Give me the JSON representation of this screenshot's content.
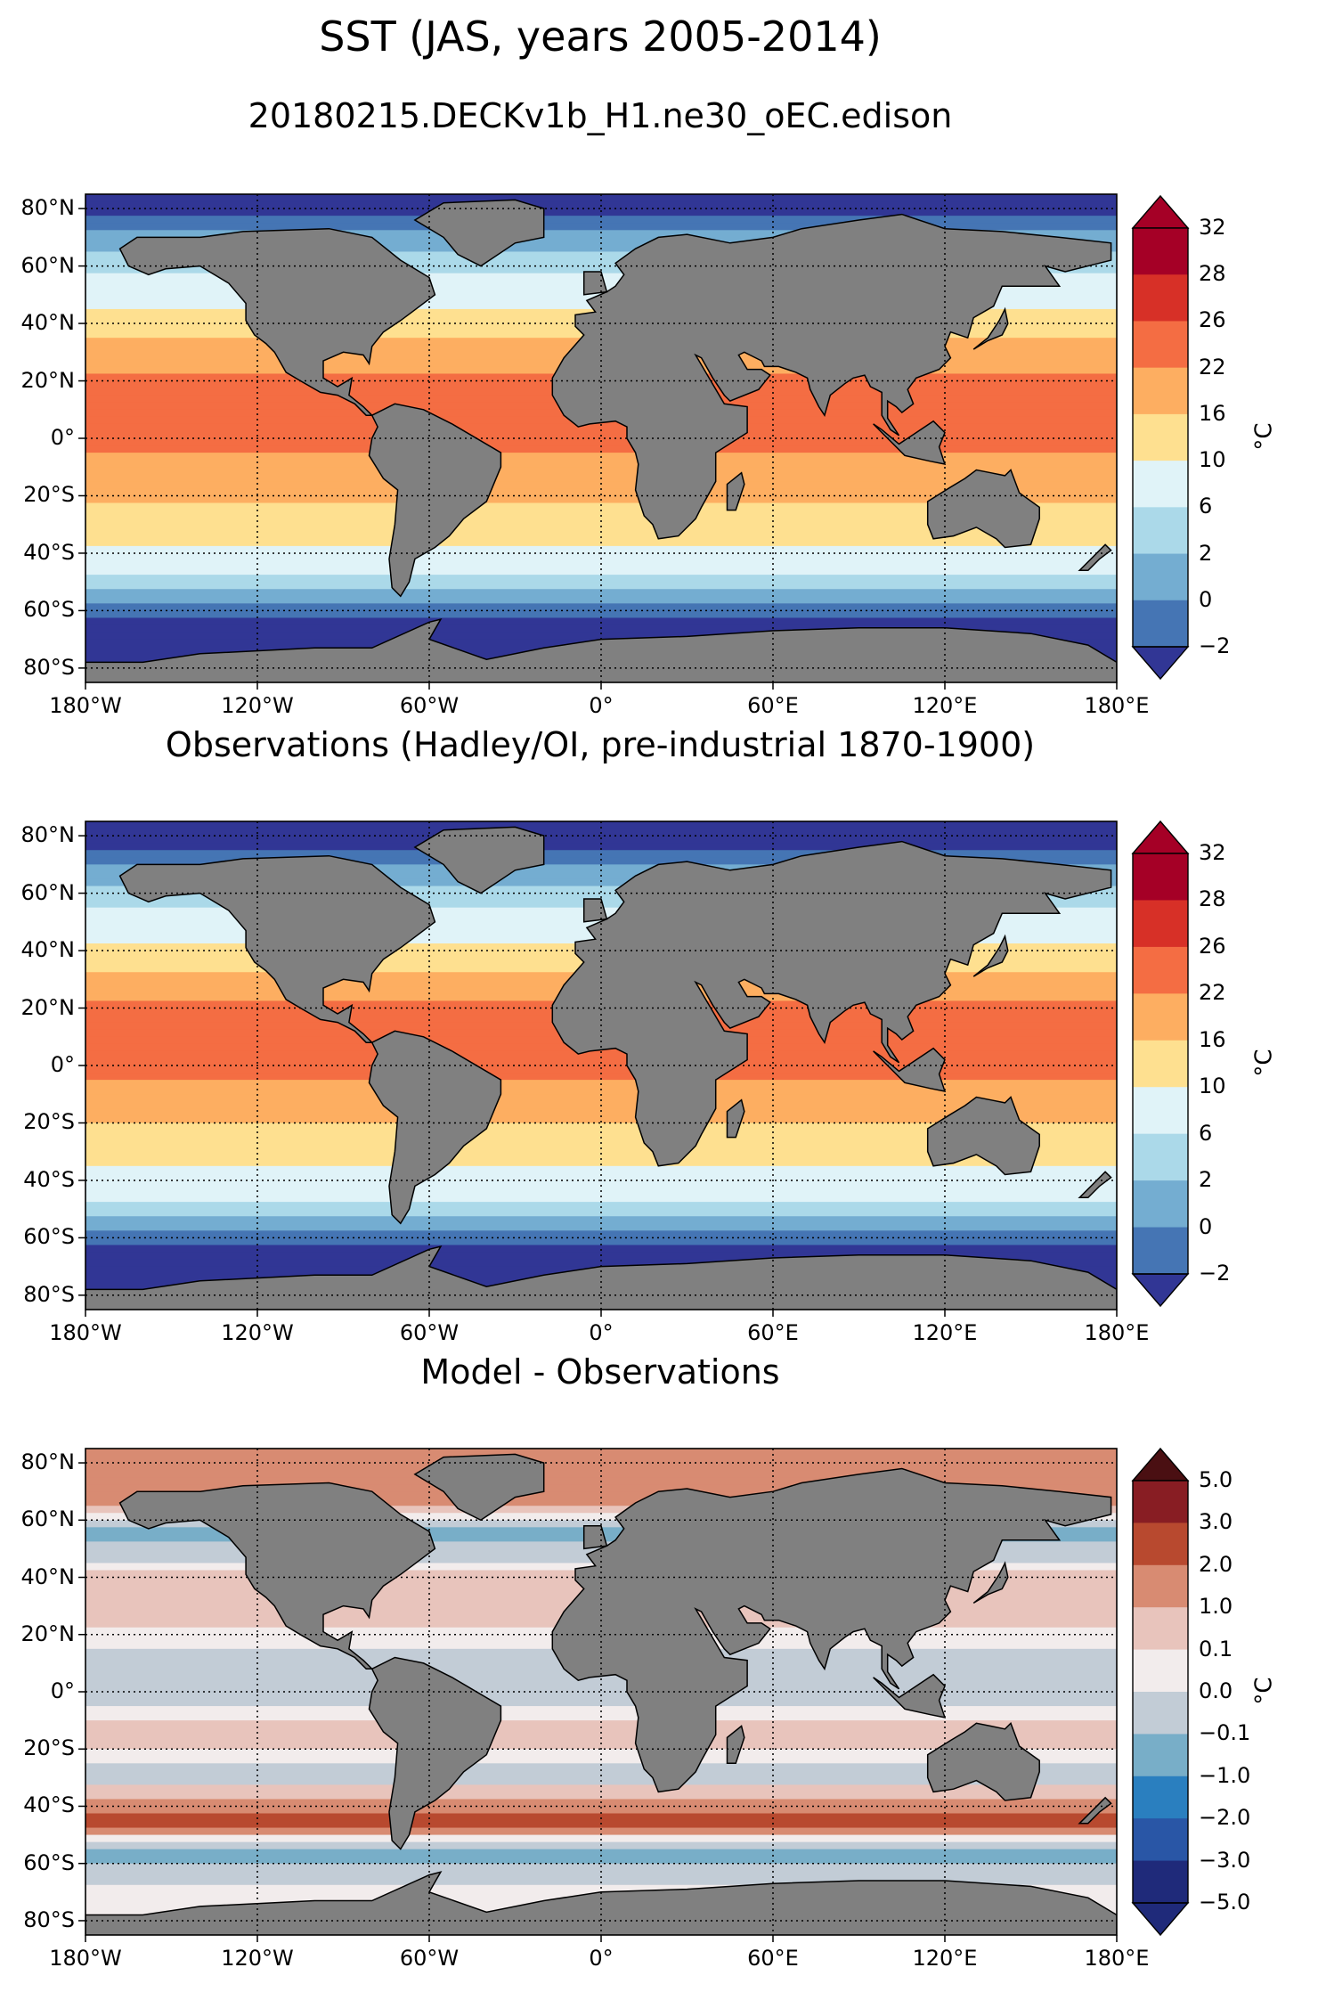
{
  "figure": {
    "title": "SST (JAS, years 2005-2014)"
  },
  "axes": {
    "xticks": [
      "180°W",
      "120°W",
      "60°W",
      "0°",
      "60°E",
      "120°E",
      "180°E"
    ],
    "yticks": [
      "80°N",
      "60°N",
      "40°N",
      "20°N",
      "0°",
      "20°S",
      "40°S",
      "60°S",
      "80°S"
    ]
  },
  "colors": {
    "land": "#808080",
    "ocean_ice": "#ffffff",
    "sst_levels": [
      "#313695",
      "#4575b4",
      "#74add1",
      "#abd9e9",
      "#e0f3f8",
      "#fee090",
      "#fdae61",
      "#f46d43",
      "#d73027",
      "#a50026"
    ],
    "diff_levels": [
      "#1f2a7a",
      "#2956a6",
      "#2a7fbf",
      "#78aec8",
      "#c2ccd6",
      "#f2ecec",
      "#e8c4bc",
      "#d88b72",
      "#b8492f",
      "#881d23",
      "#4a0f12"
    ]
  },
  "chart_data": [
    {
      "type": "heatmap",
      "title": "20180215.DECKv1b_H1.ne30_oEC.edison",
      "colorbar": {
        "unit": "°C",
        "levels": [
          "32",
          "28",
          "26",
          "22",
          "16",
          "10",
          "6",
          "2",
          "0",
          "−2"
        ],
        "extend": "both"
      },
      "xrange": [
        -180,
        180
      ],
      "yrange": [
        -85,
        85
      ],
      "zonal_mean_sst": [
        {
          "lat": 80,
          "value": -1.5
        },
        {
          "lat": 70,
          "value": 3
        },
        {
          "lat": 60,
          "value": 8
        },
        {
          "lat": 45,
          "value": 16
        },
        {
          "lat": 30,
          "value": 24
        },
        {
          "lat": 15,
          "value": 28
        },
        {
          "lat": 0,
          "value": 27
        },
        {
          "lat": -15,
          "value": 24
        },
        {
          "lat": -30,
          "value": 20
        },
        {
          "lat": -45,
          "value": 12
        },
        {
          "lat": -55,
          "value": 4
        },
        {
          "lat": -65,
          "value": -1.5
        }
      ]
    },
    {
      "type": "heatmap",
      "title": "Observations (Hadley/OI, pre-industrial 1870-1900)",
      "colorbar": {
        "unit": "°C",
        "levels": [
          "32",
          "28",
          "26",
          "22",
          "16",
          "10",
          "6",
          "2",
          "0",
          "−2"
        ],
        "extend": "both"
      },
      "xrange": [
        -180,
        180
      ],
      "yrange": [
        -85,
        85
      ],
      "zonal_mean_sst": [
        {
          "lat": 80,
          "value": -1.5
        },
        {
          "lat": 70,
          "value": 2
        },
        {
          "lat": 60,
          "value": 7
        },
        {
          "lat": 45,
          "value": 15
        },
        {
          "lat": 30,
          "value": 24
        },
        {
          "lat": 15,
          "value": 28
        },
        {
          "lat": 0,
          "value": 27
        },
        {
          "lat": -15,
          "value": 24
        },
        {
          "lat": -30,
          "value": 19
        },
        {
          "lat": -45,
          "value": 11
        },
        {
          "lat": -55,
          "value": 3
        },
        {
          "lat": -65,
          "value": -1.5
        }
      ]
    },
    {
      "type": "heatmap",
      "title": "Model - Observations",
      "colorbar": {
        "unit": "°C",
        "levels": [
          "5.0",
          "3.0",
          "2.0",
          "1.0",
          "0.1",
          "0.0",
          "−0.1",
          "−1.0",
          "−2.0",
          "−3.0",
          "−5.0"
        ],
        "extend": "both"
      },
      "xrange": [
        -180,
        180
      ],
      "yrange": [
        -85,
        85
      ],
      "zonal_mean_diff": [
        {
          "lat": 80,
          "value": 1.0
        },
        {
          "lat": 70,
          "value": 2.0
        },
        {
          "lat": 55,
          "value": -1.5
        },
        {
          "lat": 40,
          "value": 0.5
        },
        {
          "lat": 20,
          "value": 0.05
        },
        {
          "lat": 0,
          "value": -0.5
        },
        {
          "lat": -15,
          "value": 0.5
        },
        {
          "lat": -30,
          "value": -0.5
        },
        {
          "lat": -45,
          "value": 2.5
        },
        {
          "lat": -55,
          "value": -1.5
        },
        {
          "lat": -70,
          "value": 0.05
        }
      ]
    }
  ]
}
